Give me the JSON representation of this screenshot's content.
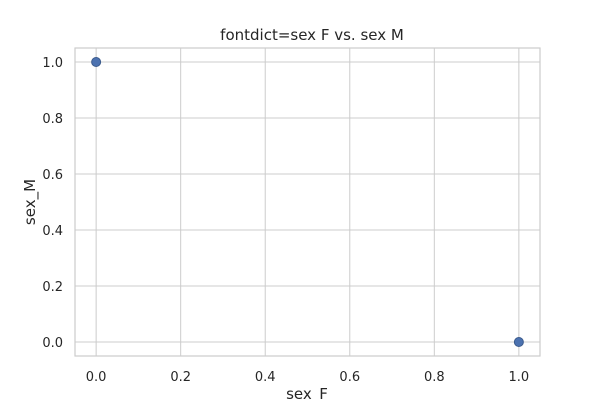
{
  "chart_data": {
    "type": "scatter",
    "title": "fontdict=sex F vs. sex M",
    "xlabel": "sex_F",
    "ylabel": "sex_M",
    "xlim": [
      -0.05,
      1.05
    ],
    "ylim": [
      -0.05,
      1.05
    ],
    "xticks": [
      0.0,
      0.2,
      0.4,
      0.6,
      0.8,
      1.0
    ],
    "yticks": [
      0.0,
      0.2,
      0.4,
      0.6,
      0.8,
      1.0
    ],
    "tick_format": "0.0",
    "grid": true,
    "point_color": "#4c72b0",
    "points": [
      {
        "x": 0.0,
        "y": 1.0
      },
      {
        "x": 1.0,
        "y": 0.0
      }
    ]
  }
}
